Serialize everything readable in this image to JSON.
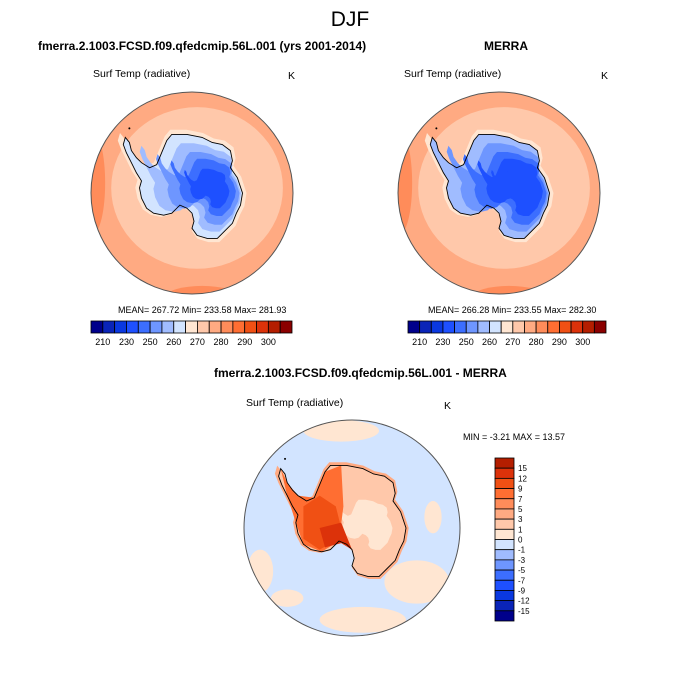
{
  "figure_title": "DJF",
  "chart_data": [
    {
      "type": "heatmap",
      "projection": "south-polar-stereographic",
      "title": "fmerra.2.1003.FCSD.f09.qfedcmip.56L.001 (yrs 2001-2014)",
      "left_label": "Surf Temp (radiative)",
      "right_label": "K",
      "stats": "MEAN= 267.72  Min= 233.58  Max= 281.93",
      "mean": 267.72,
      "min": 233.58,
      "max": 281.93,
      "colorbar": {
        "orientation": "horizontal",
        "levels": [
          210,
          220,
          230,
          240,
          250,
          255,
          260,
          265,
          270,
          275,
          280,
          285,
          290,
          295,
          300
        ],
        "tick_labels": [
          "210",
          "230",
          "250",
          "260",
          "270",
          "280",
          "290",
          "300"
        ],
        "colors": [
          "#00008b",
          "#0a24b8",
          "#0a38e0",
          "#1e50ff",
          "#3c6eff",
          "#6e96ff",
          "#a0bcff",
          "#d2e4ff",
          "#ffe6d2",
          "#ffc8aa",
          "#ffaa82",
          "#ff8c5a",
          "#ff6e32",
          "#f05014",
          "#dc320a",
          "#b41e00",
          "#8b0000"
        ]
      },
      "regions": {
        "ocean_north": "#ffc8aa",
        "ocean_outer": "#ffaa82",
        "ocean_edge": "#ff8c5a",
        "coast_shelf": "#ffe6d2",
        "ice_west": "#d2e4ff",
        "ice_mid": "#a0bcff",
        "ice_high": "#6e96ff",
        "ice_plateau": "#3c6eff",
        "ice_core": "#1e50ff"
      }
    },
    {
      "type": "heatmap",
      "projection": "south-polar-stereographic",
      "title": "MERRA",
      "left_label": "Surf Temp (radiative)",
      "right_label": "K",
      "stats": "MEAN= 266.28  Min= 233.55  Max= 282.30",
      "mean": 266.28,
      "min": 233.55,
      "max": 282.3,
      "colorbar": {
        "orientation": "horizontal",
        "levels": [
          210,
          220,
          230,
          240,
          250,
          255,
          260,
          265,
          270,
          275,
          280,
          285,
          290,
          295,
          300
        ],
        "tick_labels": [
          "210",
          "230",
          "250",
          "260",
          "270",
          "280",
          "290",
          "300"
        ],
        "colors": [
          "#00008b",
          "#0a24b8",
          "#0a38e0",
          "#1e50ff",
          "#3c6eff",
          "#6e96ff",
          "#a0bcff",
          "#d2e4ff",
          "#ffe6d2",
          "#ffc8aa",
          "#ffaa82",
          "#ff8c5a",
          "#ff6e32",
          "#f05014",
          "#dc320a",
          "#b41e00",
          "#8b0000"
        ]
      },
      "regions": {
        "ocean_north": "#ffc8aa",
        "ocean_outer": "#ffaa82",
        "ocean_edge": "#ff8c5a",
        "coast_shelf": "#ffe6d2",
        "ice_west": "#a0bcff",
        "ice_mid": "#6e96ff",
        "ice_high": "#3c6eff",
        "ice_plateau": "#1e50ff",
        "ice_core": "#1e50ff"
      }
    },
    {
      "type": "heatmap",
      "projection": "south-polar-stereographic",
      "title": "fmerra.2.1003.FCSD.f09.qfedcmip.56L.001 - MERRA",
      "left_label": "Surf Temp (radiative)",
      "right_label": "K",
      "stats": "MIN =  -3.21 MAX =  13.57",
      "min": -3.21,
      "max": 13.57,
      "colorbar": {
        "orientation": "vertical",
        "levels": [
          -15,
          -12,
          -9,
          -7,
          -5,
          -3,
          -1,
          0,
          1,
          3,
          5,
          7,
          9,
          12,
          15
        ],
        "tick_labels": [
          "15",
          "12",
          "9",
          "7",
          "5",
          "3",
          "1",
          "0",
          "-1",
          "-3",
          "-5",
          "-7",
          "-9",
          "-12",
          "-15"
        ],
        "colors": [
          "#00008b",
          "#0a24b8",
          "#0a38e0",
          "#1e50ff",
          "#3c6eff",
          "#6e96ff",
          "#a0bcff",
          "#d2e4ff",
          "#ffe6d2",
          "#ffc8aa",
          "#ffaa82",
          "#ff8c5a",
          "#ff6e32",
          "#f05014",
          "#dc320a",
          "#b41e00"
        ]
      },
      "regions": {
        "ocean": "#d2e4ff",
        "ocean_patches": "#ffe6d2",
        "east_plateau": "#ffc8aa",
        "east_core": "#ffe6d2",
        "east_margin": "#ffaa82",
        "west_ice": "#f05014",
        "west_core": "#dc320a",
        "peninsula": "#ff6e32"
      }
    }
  ]
}
